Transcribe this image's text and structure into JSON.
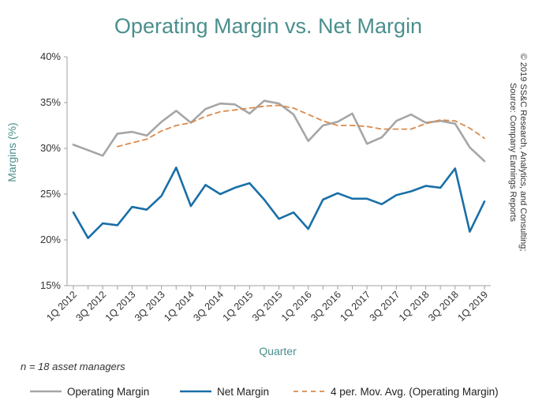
{
  "chart_data": {
    "type": "line",
    "title": "Operating Margin vs. Net Margin",
    "xlabel": "Quarter",
    "ylabel": "Margins (%)",
    "ylim": [
      15,
      40
    ],
    "yticks": [
      15,
      20,
      25,
      30,
      35,
      40
    ],
    "ytick_labels": [
      "15%",
      "20%",
      "25%",
      "30%",
      "35%",
      "40%"
    ],
    "grid": false,
    "legend_position": "bottom",
    "categories": [
      "1Q 2012",
      "2Q 2012",
      "3Q 2012",
      "4Q 2012",
      "1Q 2013",
      "2Q 2013",
      "3Q 2013",
      "4Q 2013",
      "1Q 2014",
      "2Q 2014",
      "3Q 2014",
      "4Q 2014",
      "1Q 2015",
      "2Q 2015",
      "3Q 2015",
      "4Q 2015",
      "1Q 2016",
      "2Q 2016",
      "3Q 2016",
      "4Q 2016",
      "1Q 2017",
      "2Q 2017",
      "3Q 2017",
      "4Q 2017",
      "1Q 2018",
      "2Q 2018",
      "3Q 2018",
      "4Q 2018",
      "1Q 2019"
    ],
    "visible_tick_labels": [
      "1Q 2012",
      "3Q 2012",
      "1Q 2013",
      "3Q 2013",
      "1Q 2014",
      "3Q 2014",
      "1Q 2015",
      "3Q 2015",
      "1Q 2016",
      "3Q 2016",
      "1Q 2017",
      "3Q 2017",
      "1Q 2018",
      "3Q 2018",
      "1Q 2019"
    ],
    "series": [
      {
        "name": "Operating Margin",
        "color": "#a6a6a6",
        "style": "solid",
        "values": [
          30.4,
          29.8,
          29.2,
          31.6,
          31.8,
          31.4,
          32.9,
          34.1,
          32.8,
          34.3,
          34.9,
          34.8,
          33.8,
          35.2,
          34.9,
          33.7,
          30.8,
          32.5,
          32.9,
          33.8,
          30.5,
          31.2,
          33.0,
          33.7,
          32.8,
          33.0,
          32.7,
          30.1,
          28.6
        ]
      },
      {
        "name": "Net Margin",
        "color": "#1a6fa7",
        "style": "solid",
        "values": [
          23.0,
          20.2,
          21.8,
          21.6,
          23.6,
          23.3,
          24.8,
          27.9,
          23.7,
          26.0,
          25.0,
          25.7,
          26.2,
          24.4,
          22.3,
          23.0,
          21.2,
          24.4,
          25.1,
          24.5,
          24.5,
          23.9,
          24.9,
          25.3,
          25.9,
          25.7,
          27.8,
          20.9,
          24.2
        ]
      },
      {
        "name": "4 per. Mov. Avg. (Operating Margin)",
        "color": "#d98b4f",
        "style": "dashed",
        "values": [
          null,
          null,
          null,
          30.2,
          30.6,
          31.0,
          31.9,
          32.5,
          32.8,
          33.5,
          34.0,
          34.2,
          34.4,
          34.6,
          34.7,
          34.4,
          33.7,
          33.0,
          32.5,
          32.5,
          32.4,
          32.1,
          32.1,
          32.1,
          32.7,
          33.1,
          33.0,
          32.2,
          31.1
        ]
      }
    ],
    "annotation": "n = 18 asset managers",
    "source_lines": [
      "© 2019 SS&C Research, Analytics, and Consulting;",
      "Source: Company Earnings Reports"
    ]
  }
}
